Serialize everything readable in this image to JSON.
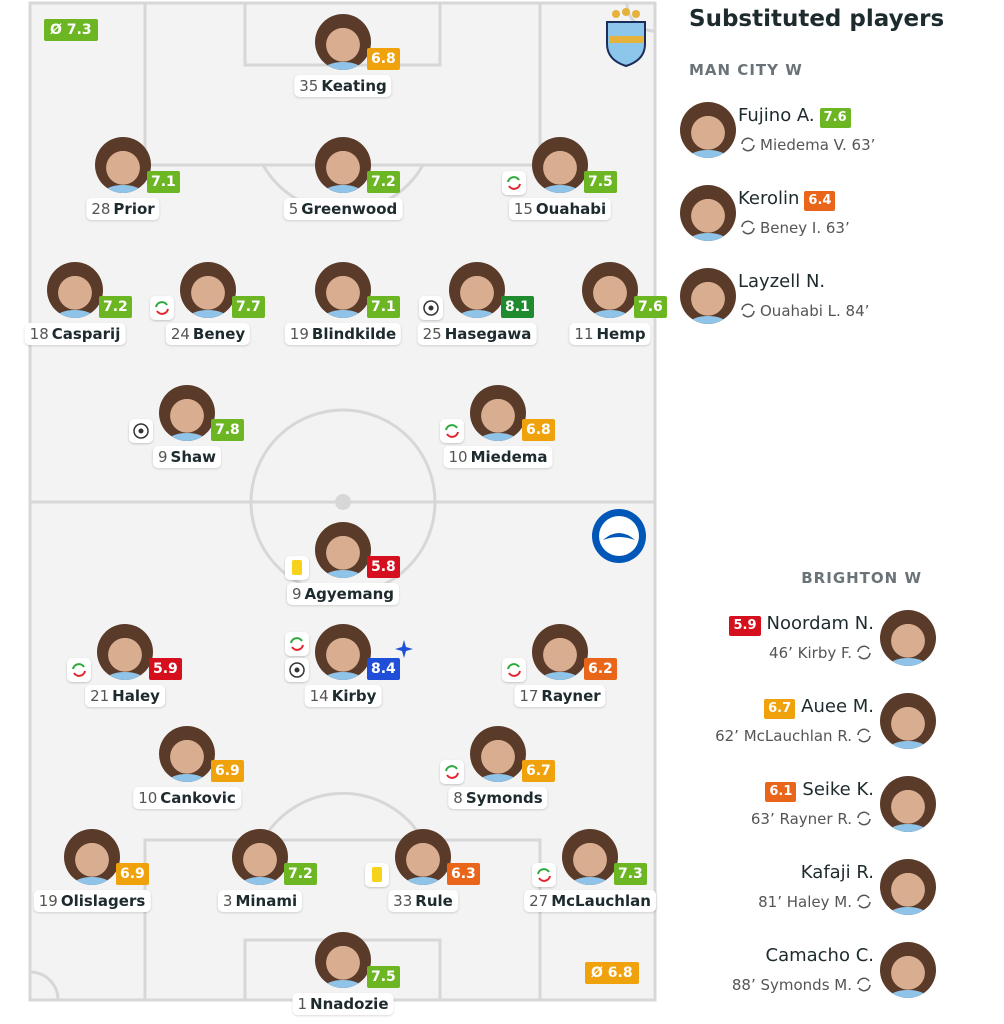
{
  "home": {
    "name": "MAN CITY W",
    "average": "Ø 7.3",
    "players": [
      {
        "number": 35,
        "name": "Keating",
        "rating": 6.8
      },
      {
        "number": 28,
        "name": "Prior",
        "rating": 7.1
      },
      {
        "number": 5,
        "name": "Greenwood",
        "rating": 7.2
      },
      {
        "number": 15,
        "name": "Ouahabi",
        "rating": 7.5
      },
      {
        "number": 18,
        "name": "Casparij",
        "rating": 7.2
      },
      {
        "number": 24,
        "name": "Beney",
        "rating": 7.7
      },
      {
        "number": 19,
        "name": "Blindkilde",
        "rating": 7.1
      },
      {
        "number": 25,
        "name": "Hasegawa",
        "rating": 8.1
      },
      {
        "number": 11,
        "name": "Hemp",
        "rating": 7.6
      },
      {
        "number": 9,
        "name": "Shaw",
        "rating": 7.8
      },
      {
        "number": 10,
        "name": "Miedema",
        "rating": 6.8
      }
    ],
    "subs": [
      {
        "name": "Fujino A.",
        "rating": 7.6,
        "replaced": "Miedema V. 63’"
      },
      {
        "name": "Kerolin",
        "rating": 6.4,
        "replaced": "Beney I. 63’"
      },
      {
        "name": "Layzell N.",
        "replaced": "Ouahabi L. 84’"
      }
    ]
  },
  "away": {
    "name": "BRIGHTON W",
    "average": "Ø 6.8",
    "players": [
      {
        "number": 9,
        "name": "Agyemang",
        "rating": 5.8
      },
      {
        "number": 21,
        "name": "Haley",
        "rating": 5.9
      },
      {
        "number": 14,
        "name": "Kirby",
        "rating": 8.4
      },
      {
        "number": 17,
        "name": "Rayner",
        "rating": 6.2
      },
      {
        "number": 10,
        "name": "Cankovic",
        "rating": 6.9
      },
      {
        "number": 8,
        "name": "Symonds",
        "rating": 6.7
      },
      {
        "number": 19,
        "name": "Olislagers",
        "rating": 6.9
      },
      {
        "number": 3,
        "name": "Minami",
        "rating": 7.2
      },
      {
        "number": 33,
        "name": "Rule",
        "rating": 6.3
      },
      {
        "number": 27,
        "name": "McLauchlan",
        "rating": 7.3
      },
      {
        "number": 1,
        "name": "Nnadozie",
        "rating": 7.5
      }
    ],
    "subs": [
      {
        "name": "Noordam N.",
        "rating": 5.9,
        "replaced": "46’ Kirby F."
      },
      {
        "name": "Auee M.",
        "rating": 6.7,
        "replaced": "62’ McLauchlan R."
      },
      {
        "name": "Seike K.",
        "rating": 6.1,
        "replaced": "63’ Rayner R."
      },
      {
        "name": "Kafaji R.",
        "replaced": "81’ Haley M."
      },
      {
        "name": "Camacho C.",
        "replaced": "88’ Symonds M."
      }
    ]
  },
  "substitutes_title": "Substituted players"
}
